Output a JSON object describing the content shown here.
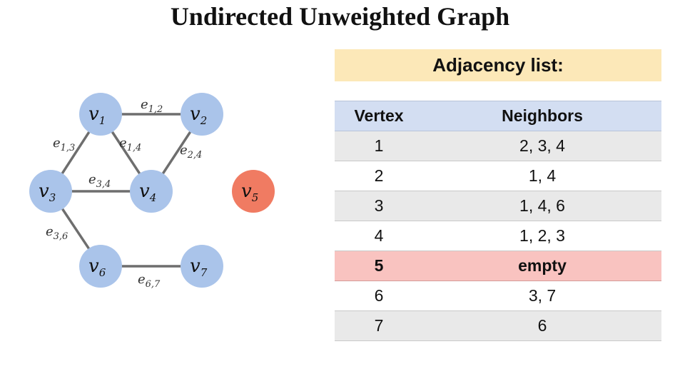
{
  "title": "Undirected Unweighted Graph",
  "graph": {
    "colors": {
      "node": "#aac4ea",
      "isolated": "#f07b62",
      "edge": "#6e6e6e"
    },
    "nodes": [
      {
        "id": 1,
        "base": "v",
        "sub": "1"
      },
      {
        "id": 2,
        "base": "v",
        "sub": "2"
      },
      {
        "id": 3,
        "base": "v",
        "sub": "3"
      },
      {
        "id": 4,
        "base": "v",
        "sub": "4"
      },
      {
        "id": 5,
        "base": "v",
        "sub": "5"
      },
      {
        "id": 6,
        "base": "v",
        "sub": "6"
      },
      {
        "id": 7,
        "base": "v",
        "sub": "7"
      }
    ],
    "edges": [
      {
        "id": "1-2",
        "from": 1,
        "to": 2,
        "base": "e",
        "sub": "1,2"
      },
      {
        "id": "1-3",
        "from": 1,
        "to": 3,
        "base": "e",
        "sub": "1,3"
      },
      {
        "id": "1-4",
        "from": 1,
        "to": 4,
        "base": "e",
        "sub": "1,4"
      },
      {
        "id": "2-4",
        "from": 2,
        "to": 4,
        "base": "e",
        "sub": "2,4"
      },
      {
        "id": "3-4",
        "from": 3,
        "to": 4,
        "base": "e",
        "sub": "3,4"
      },
      {
        "id": "3-6",
        "from": 3,
        "to": 6,
        "base": "e",
        "sub": "3,6"
      },
      {
        "id": "6-7",
        "from": 6,
        "to": 7,
        "base": "e",
        "sub": "6,7"
      }
    ]
  },
  "adjacency": {
    "title": "Adjacency list:",
    "headers": {
      "vertex": "Vertex",
      "neighbors": "Neighbors"
    },
    "rows": [
      {
        "vertex": "1",
        "neighbors": "2, 3, 4"
      },
      {
        "vertex": "2",
        "neighbors": "1, 4"
      },
      {
        "vertex": "3",
        "neighbors": "1, 4, 6"
      },
      {
        "vertex": "4",
        "neighbors": "1, 2, 3"
      },
      {
        "vertex": "5",
        "neighbors": "empty"
      },
      {
        "vertex": "6",
        "neighbors": "3, 7"
      },
      {
        "vertex": "7",
        "neighbors": "6"
      }
    ]
  }
}
